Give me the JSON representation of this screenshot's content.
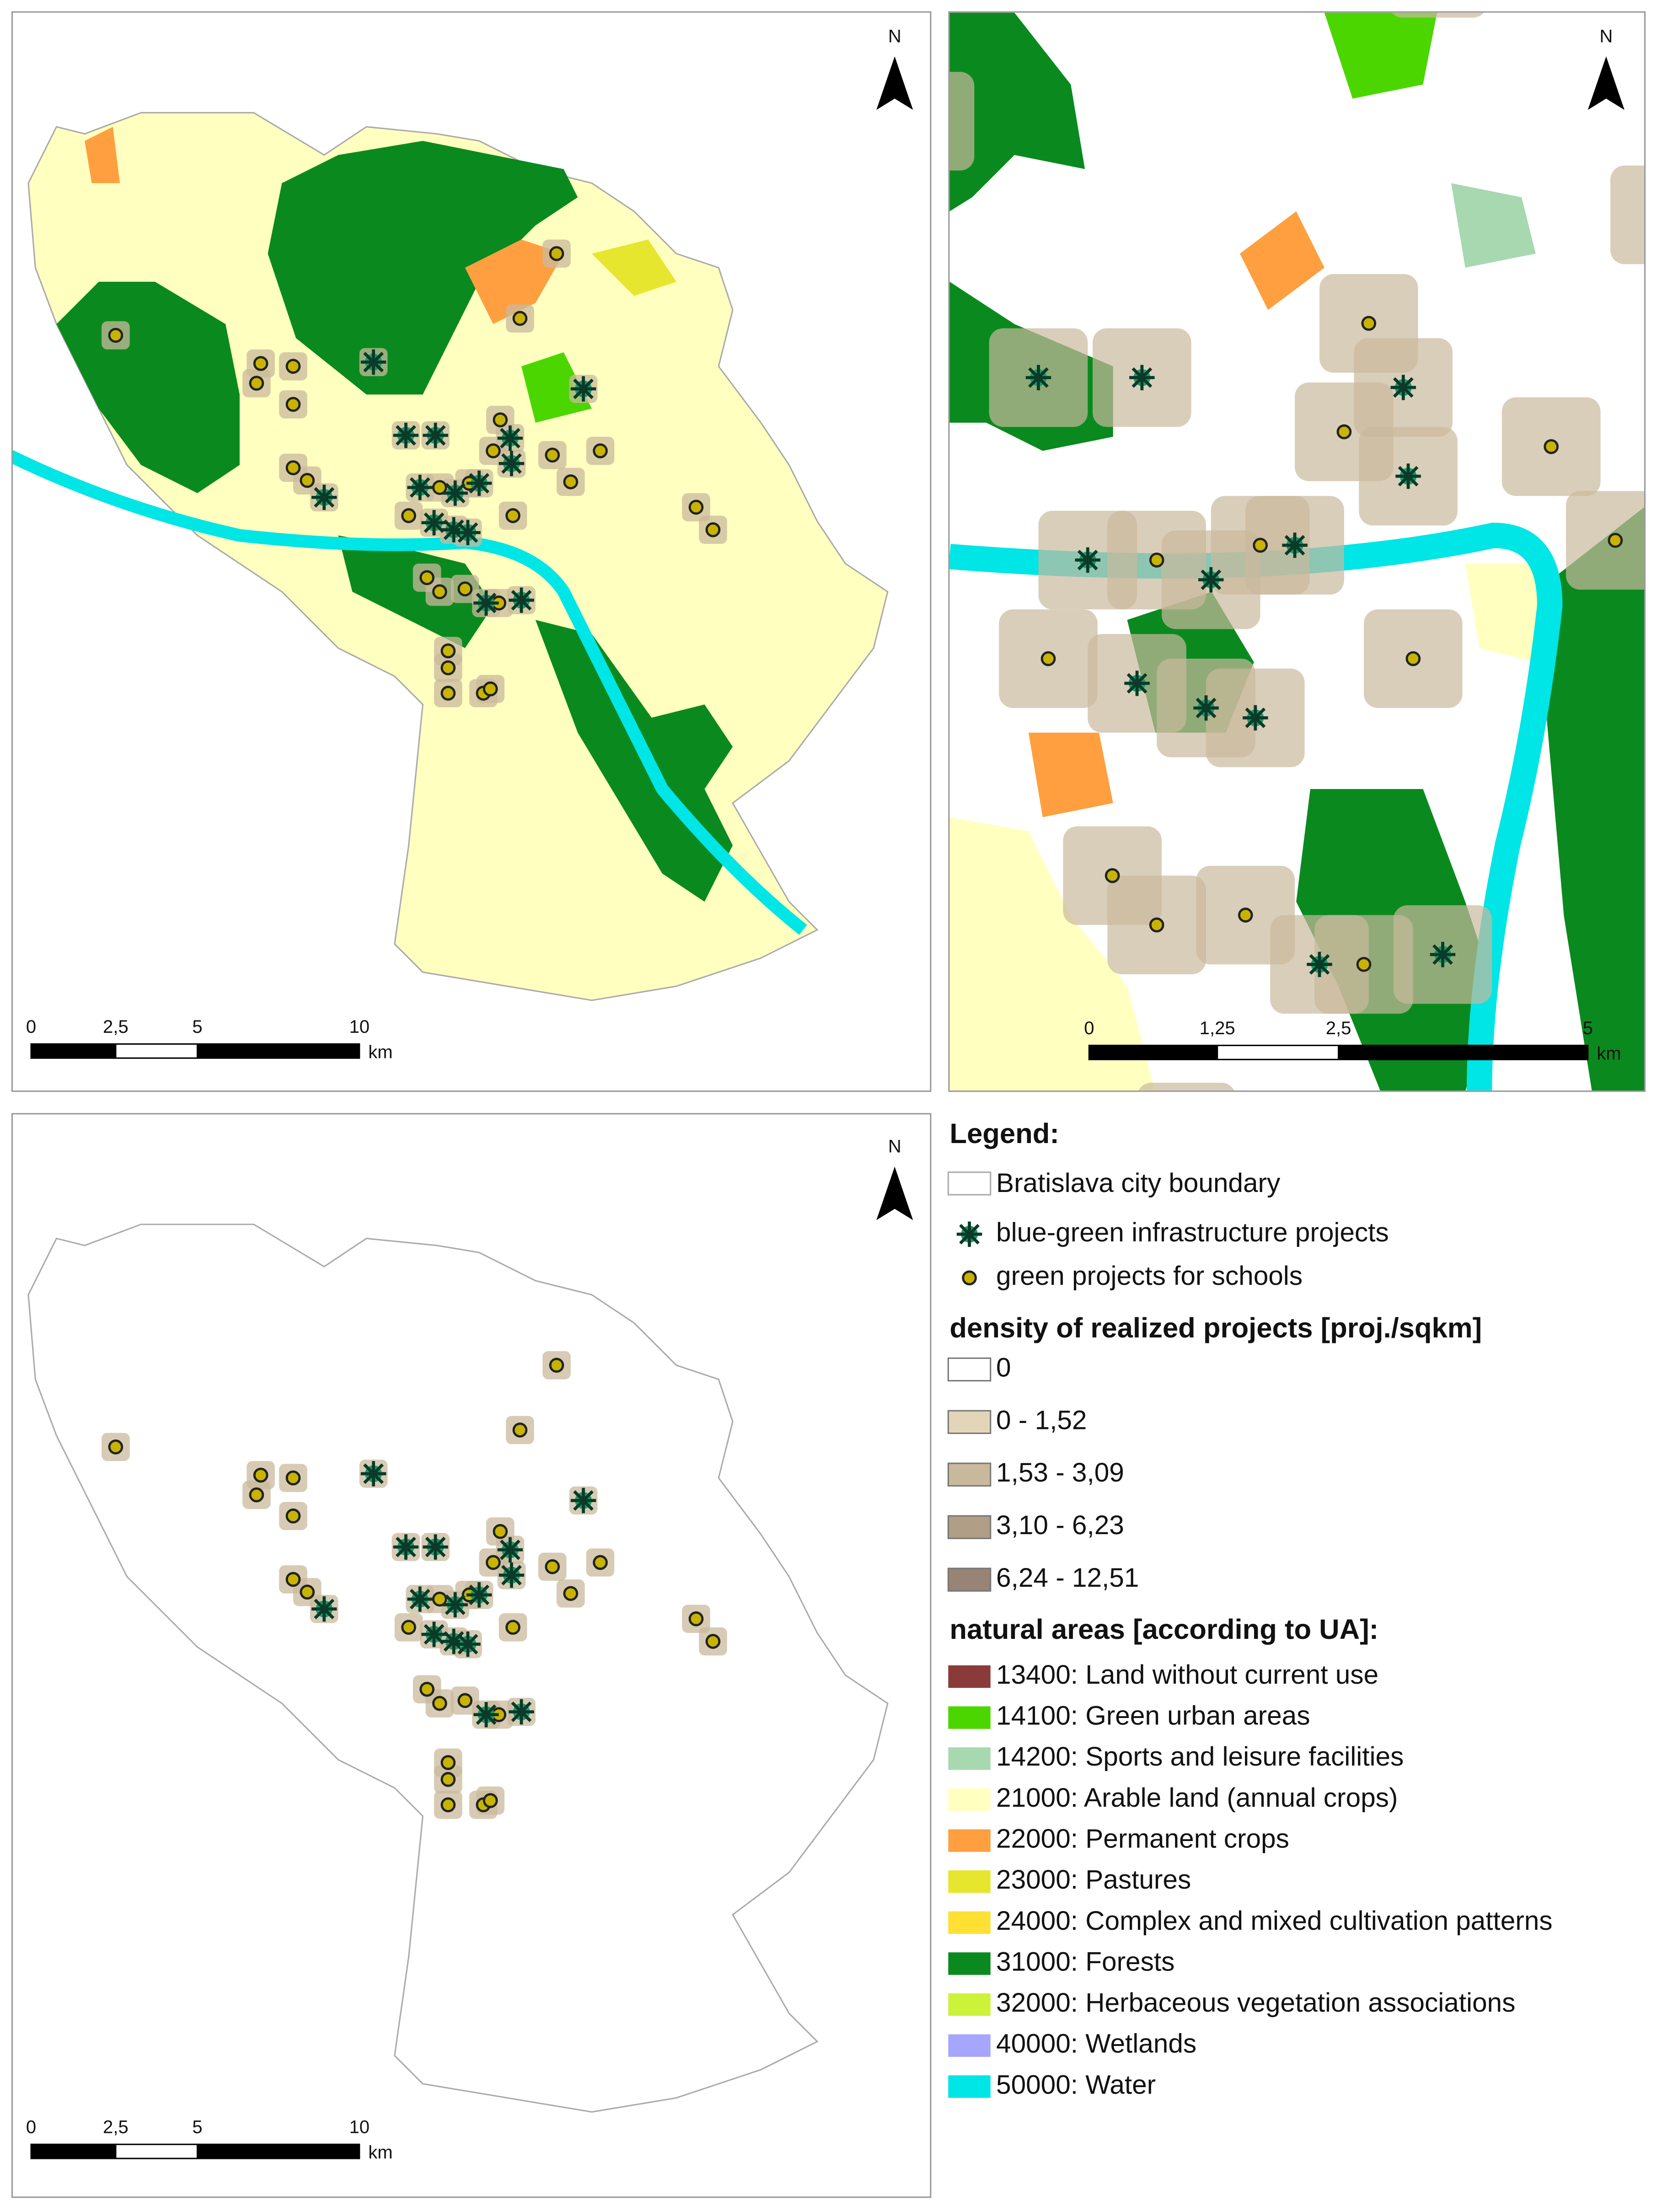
{
  "panels": [
    {
      "north": "N",
      "scale": {
        "ticks": [
          "0",
          "2,5",
          "5",
          "10"
        ],
        "unit": "km"
      }
    },
    {
      "north": "N",
      "scale": {
        "ticks": [
          "0",
          "1,25",
          "2,5",
          "5"
        ],
        "unit": "km"
      }
    },
    {
      "north": "N",
      "scale": {
        "ticks": [
          "0",
          "2,5",
          "5",
          "10"
        ],
        "unit": "km"
      }
    }
  ],
  "legend": {
    "title": "Legend:",
    "items": [
      "Bratislava city boundary",
      "blue-green infrastructure projects",
      "green projects for schools"
    ],
    "density_title": "density of realized projects [proj./sqkm]",
    "density_classes": [
      {
        "label": "0",
        "color": "#ffffff"
      },
      {
        "label": "0 - 1,52",
        "color": "#e3d6b8"
      },
      {
        "label": "1,53 - 3,09",
        "color": "#c9b99c"
      },
      {
        "label": "3,10 - 6,23",
        "color": "#b09e86"
      },
      {
        "label": "6,24 - 12,51",
        "color": "#988474"
      }
    ],
    "natural_title": "natural areas [according to UA]:",
    "natural_classes": [
      {
        "label": "13400: Land without current use",
        "color": "#8b3a3a"
      },
      {
        "label": "14100: Green urban areas",
        "color": "#4cd600"
      },
      {
        "label": "14200: Sports and leisure facilities",
        "color": "#a8d8b0"
      },
      {
        "label": "21000: Arable land (annual crops)",
        "color": "#ffffc0"
      },
      {
        "label": "22000: Permanent crops",
        "color": "#ff9f40"
      },
      {
        "label": "23000: Pastures",
        "color": "#e6e62e"
      },
      {
        "label": "24000: Complex and mixed cultivation patterns",
        "color": "#ffe033"
      },
      {
        "label": "31000: Forests",
        "color": "#0a8a1e"
      },
      {
        "label": "32000: Herbaceous vegetation associations",
        "color": "#ccf23a"
      },
      {
        "label": "40000: Wetlands",
        "color": "#a6a6ff"
      },
      {
        "label": "50000: Water",
        "color": "#00e5e5"
      }
    ]
  }
}
